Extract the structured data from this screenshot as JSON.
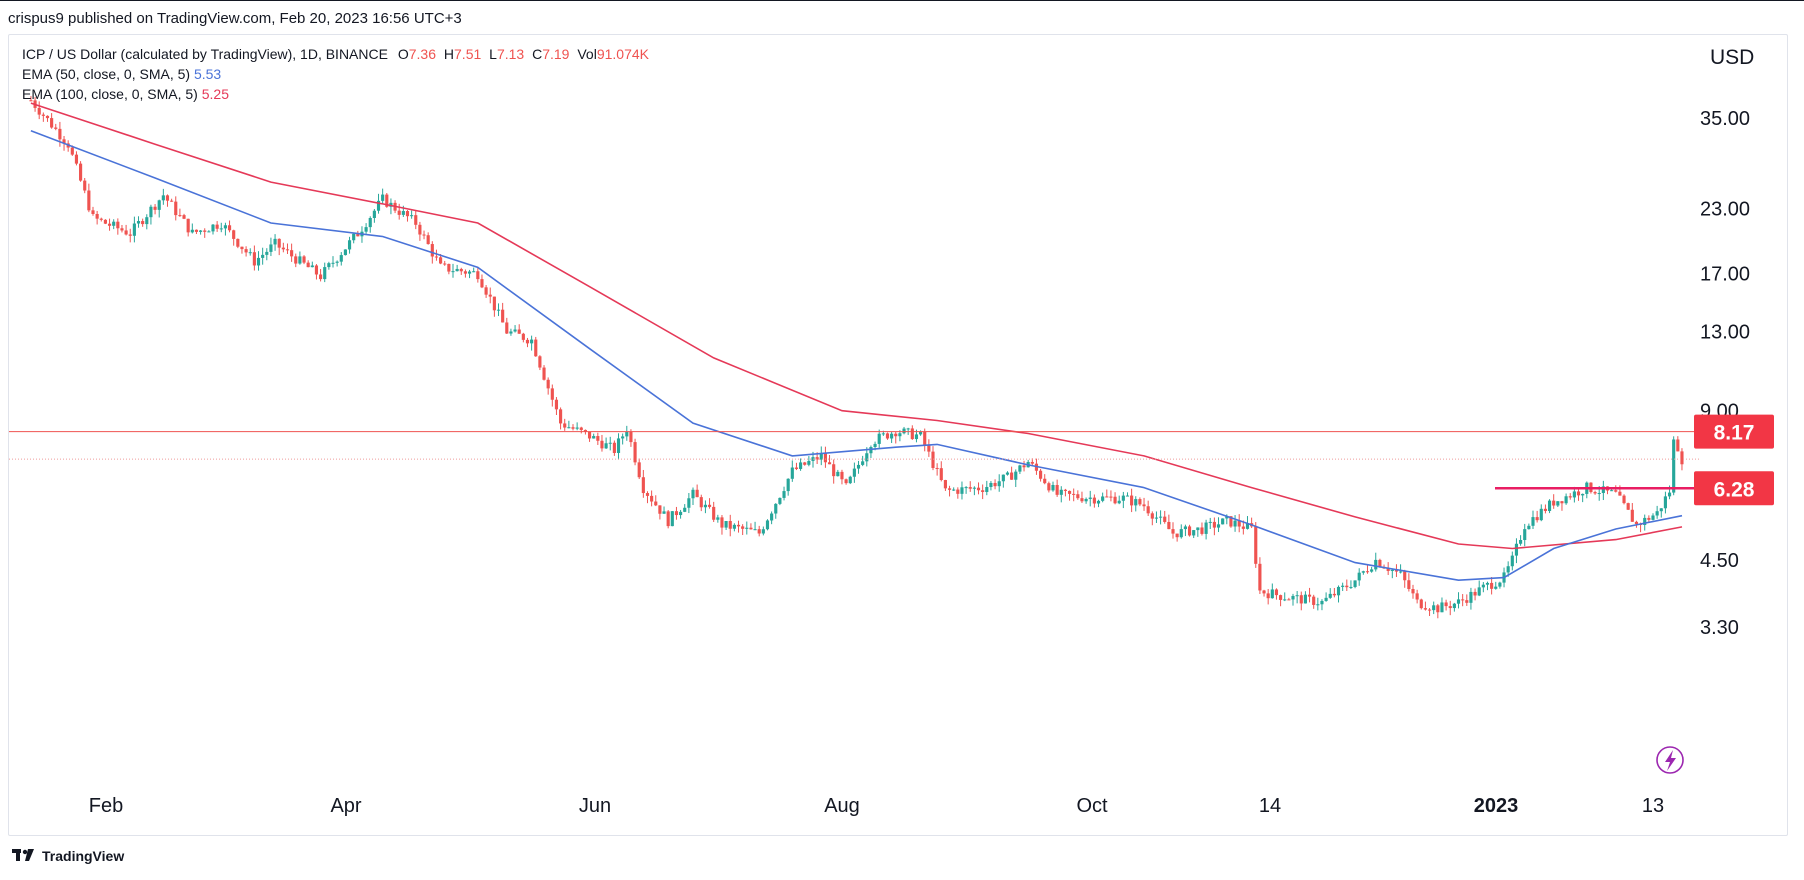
{
  "header": {
    "publisher_text": "crispus9 published on TradingView.com, Feb 20, 2023 16:56 UTC+3"
  },
  "legend": {
    "title": "ICP / US Dollar (calculated by TradingView), 1D, BINANCE",
    "ohlc": {
      "o_label": "O",
      "o_value": "7.36",
      "h_label": "H",
      "h_value": "7.51",
      "l_label": "L",
      "l_value": "7.13",
      "c_label": "C",
      "c_value": "7.19",
      "vol_label": "Vol",
      "vol_value": "91.074K"
    },
    "ema50": {
      "label": "EMA (50, close, 0, SMA, 5)",
      "value": "5.53"
    },
    "ema100": {
      "label": "EMA (100, close, 0, SMA, 5)",
      "value": "5.25"
    }
  },
  "footer": {
    "brand": "TradingView"
  },
  "colors": {
    "up": "#26a69a",
    "down": "#ef5350",
    "ema50": "#4a73d8",
    "ema100": "#e53958",
    "hline": "#ef5350",
    "axis_badge": "#f23645"
  },
  "chart_data": {
    "type": "candlestick",
    "currency_label": "USD",
    "y_scale": "log",
    "y_ticks": [
      "35.00",
      "23.00",
      "17.00",
      "13.00",
      "9.00",
      "4.50",
      "3.30"
    ],
    "x_ticks": [
      "Feb",
      "Apr",
      "Jun",
      "Aug",
      "Oct",
      "14",
      "2023",
      "13"
    ],
    "horizontal_lines": [
      {
        "value": 8.17,
        "label": "8.17",
        "style": "thin-full-width"
      },
      {
        "value": 6.28,
        "label": "6.28",
        "style": "thick-from-jan-2023"
      }
    ],
    "close_price_line": 7.19,
    "price_series_approx": [
      [
        "2022-01-17",
        38.0
      ],
      [
        "2022-01-26",
        31.0
      ],
      [
        "2022-02-01",
        22.0
      ],
      [
        "2022-02-10",
        20.5
      ],
      [
        "2022-02-18",
        24.5
      ],
      [
        "2022-02-25",
        20.5
      ],
      [
        "2022-03-04",
        21.5
      ],
      [
        "2022-03-12",
        18.0
      ],
      [
        "2022-03-17",
        19.5
      ],
      [
        "2022-03-28",
        16.8
      ],
      [
        "2022-04-06",
        20.5
      ],
      [
        "2022-04-12",
        24.0
      ],
      [
        "2022-04-20",
        21.5
      ],
      [
        "2022-04-26",
        17.5
      ],
      [
        "2022-05-05",
        17.0
      ],
      [
        "2022-05-12",
        13.0
      ],
      [
        "2022-05-18",
        12.5
      ],
      [
        "2022-05-25",
        8.5
      ],
      [
        "2022-06-01",
        8.0
      ],
      [
        "2022-06-07",
        7.5
      ],
      [
        "2022-06-10",
        8.3
      ],
      [
        "2022-06-14",
        6.3
      ],
      [
        "2022-06-20",
        5.4
      ],
      [
        "2022-06-26",
        6.1
      ],
      [
        "2022-07-03",
        5.3
      ],
      [
        "2022-07-12",
        5.1
      ],
      [
        "2022-07-20",
        6.8
      ],
      [
        "2022-07-27",
        7.3
      ],
      [
        "2022-08-02",
        6.3
      ],
      [
        "2022-08-08",
        7.8
      ],
      [
        "2022-08-14",
        8.2
      ],
      [
        "2022-08-20",
        8.0
      ],
      [
        "2022-08-26",
        6.2
      ],
      [
        "2022-09-04",
        6.3
      ],
      [
        "2022-09-10",
        6.6
      ],
      [
        "2022-09-15",
        7.1
      ],
      [
        "2022-09-22",
        6.1
      ],
      [
        "2022-10-01",
        6.0
      ],
      [
        "2022-10-08",
        6.0
      ],
      [
        "2022-10-13",
        5.8
      ],
      [
        "2022-10-20",
        5.1
      ],
      [
        "2022-10-27",
        5.2
      ],
      [
        "2022-11-02",
        5.4
      ],
      [
        "2022-11-08",
        5.2
      ],
      [
        "2022-11-10",
        3.9
      ],
      [
        "2022-11-16",
        3.8
      ],
      [
        "2022-11-25",
        3.7
      ],
      [
        "2022-12-03",
        4.1
      ],
      [
        "2022-12-08",
        4.5
      ],
      [
        "2022-12-14",
        4.2
      ],
      [
        "2022-12-18",
        3.7
      ],
      [
        "2022-12-23",
        3.6
      ],
      [
        "2022-12-28",
        3.7
      ],
      [
        "2023-01-04",
        4.0
      ],
      [
        "2023-01-08",
        4.15
      ],
      [
        "2023-01-10",
        4.5
      ],
      [
        "2023-01-13",
        5.3
      ],
      [
        "2023-01-20",
        5.9
      ],
      [
        "2023-01-28",
        6.3
      ],
      [
        "2023-02-04",
        6.1
      ],
      [
        "2023-02-09",
        5.3
      ],
      [
        "2023-02-14",
        5.6
      ],
      [
        "2023-02-17",
        6.2
      ],
      [
        "2023-02-18",
        7.8
      ],
      [
        "2023-02-19",
        7.6
      ],
      [
        "2023-02-20",
        7.19
      ]
    ],
    "ema50_approx": [
      [
        "2022-01-17",
        33.0
      ],
      [
        "2022-02-16",
        26.5
      ],
      [
        "2022-03-16",
        21.5
      ],
      [
        "2022-04-12",
        20.2
      ],
      [
        "2022-05-05",
        17.5
      ],
      [
        "2022-06-01",
        12.0
      ],
      [
        "2022-06-26",
        8.5
      ],
      [
        "2022-07-20",
        7.3
      ],
      [
        "2022-08-14",
        7.6
      ],
      [
        "2022-08-24",
        7.7
      ],
      [
        "2022-09-15",
        7.0
      ],
      [
        "2022-10-13",
        6.3
      ],
      [
        "2022-11-08",
        5.3
      ],
      [
        "2022-12-03",
        4.45
      ],
      [
        "2022-12-28",
        4.1
      ],
      [
        "2023-01-08",
        4.15
      ],
      [
        "2023-01-20",
        4.75
      ],
      [
        "2023-02-04",
        5.2
      ],
      [
        "2023-02-20",
        5.53
      ]
    ],
    "ema100_approx": [
      [
        "2022-01-17",
        37.5
      ],
      [
        "2022-02-16",
        31.0
      ],
      [
        "2022-03-16",
        26.0
      ],
      [
        "2022-04-12",
        23.5
      ],
      [
        "2022-05-05",
        21.5
      ],
      [
        "2022-06-01",
        16.0
      ],
      [
        "2022-07-01",
        11.5
      ],
      [
        "2022-08-01",
        9.0
      ],
      [
        "2022-08-24",
        8.6
      ],
      [
        "2022-09-15",
        8.1
      ],
      [
        "2022-10-13",
        7.3
      ],
      [
        "2022-11-08",
        6.3
      ],
      [
        "2022-12-03",
        5.5
      ],
      [
        "2022-12-28",
        4.85
      ],
      [
        "2023-01-10",
        4.75
      ],
      [
        "2023-02-04",
        4.95
      ],
      [
        "2023-02-20",
        5.25
      ]
    ]
  }
}
